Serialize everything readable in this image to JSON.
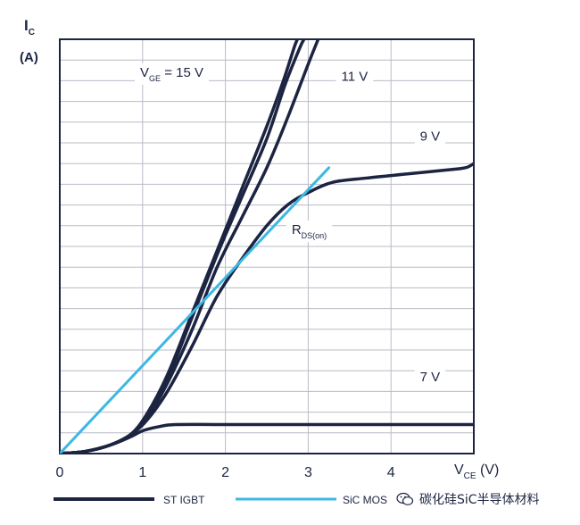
{
  "chart_data": {
    "type": "line",
    "title": "",
    "ylabel": "I",
    "ylabel_sub": "C",
    "yunit": "(A)",
    "xlabel": "V",
    "xlabel_sub": "CE",
    "xunit": " (V)",
    "xlim": [
      0,
      5
    ],
    "ylim": [
      0,
      10
    ],
    "xticks": [
      "0",
      "1",
      "2",
      "3",
      "4"
    ],
    "grid": true,
    "legend_position": "bottom",
    "series": [
      {
        "name": "ST IGBT",
        "color": "#1c2442",
        "style": "thick",
        "curves": [
          {
            "id": "vge15a",
            "points": [
              [
                0,
                0
              ],
              [
                0.3,
                0.05
              ],
              [
                0.6,
                0.2
              ],
              [
                0.85,
                0.45
              ],
              [
                1.05,
                0.95
              ],
              [
                1.3,
                1.9
              ],
              [
                1.6,
                3.4
              ],
              [
                1.9,
                4.9
              ],
              [
                2.2,
                6.4
              ],
              [
                2.5,
                7.9
              ],
              [
                2.7,
                9.0
              ],
              [
                2.83,
                9.8
              ],
              [
                2.87,
                10
              ]
            ]
          },
          {
            "id": "vge15b",
            "points": [
              [
                0,
                0
              ],
              [
                0.3,
                0.05
              ],
              [
                0.6,
                0.2
              ],
              [
                0.85,
                0.45
              ],
              [
                1.05,
                0.9
              ],
              [
                1.3,
                1.8
              ],
              [
                1.6,
                3.3
              ],
              [
                1.9,
                4.8
              ],
              [
                2.2,
                6.2
              ],
              [
                2.5,
                7.6
              ],
              [
                2.72,
                8.9
              ],
              [
                2.9,
                9.8
              ],
              [
                2.95,
                10
              ]
            ]
          },
          {
            "id": "vge11",
            "points": [
              [
                0,
                0
              ],
              [
                0.3,
                0.05
              ],
              [
                0.6,
                0.2
              ],
              [
                0.85,
                0.45
              ],
              [
                1.05,
                0.85
              ],
              [
                1.3,
                1.7
              ],
              [
                1.6,
                3.0
              ],
              [
                1.9,
                4.5
              ],
              [
                2.2,
                5.7
              ],
              [
                2.5,
                6.9
              ],
              [
                2.75,
                8.1
              ],
              [
                3.0,
                9.4
              ],
              [
                3.12,
                10
              ]
            ]
          },
          {
            "id": "vge9",
            "points": [
              [
                0,
                0
              ],
              [
                0.3,
                0.05
              ],
              [
                0.6,
                0.2
              ],
              [
                0.85,
                0.45
              ],
              [
                1.05,
                0.8
              ],
              [
                1.3,
                1.5
              ],
              [
                1.6,
                2.6
              ],
              [
                1.9,
                3.8
              ],
              [
                2.2,
                4.7
              ],
              [
                2.5,
                5.5
              ],
              [
                2.75,
                6.0
              ],
              [
                3.0,
                6.3
              ],
              [
                3.3,
                6.55
              ],
              [
                3.7,
                6.65
              ],
              [
                4.2,
                6.75
              ],
              [
                4.7,
                6.85
              ],
              [
                4.9,
                6.9
              ],
              [
                5.0,
                7.0
              ]
            ]
          },
          {
            "id": "vge7",
            "points": [
              [
                0,
                0
              ],
              [
                0.3,
                0.05
              ],
              [
                0.6,
                0.2
              ],
              [
                0.85,
                0.4
              ],
              [
                1.0,
                0.55
              ],
              [
                1.2,
                0.65
              ],
              [
                1.4,
                0.7
              ],
              [
                2.0,
                0.7
              ],
              [
                3.0,
                0.7
              ],
              [
                4.0,
                0.7
              ],
              [
                5.0,
                0.7
              ]
            ]
          }
        ]
      },
      {
        "name": "SiC MOS",
        "color": "#3db7e4",
        "style": "thin",
        "curves": [
          {
            "id": "rds-on",
            "points": [
              [
                0,
                0
              ],
              [
                3.25,
                6.9
              ]
            ]
          }
        ]
      }
    ],
    "annotations": [
      {
        "id": "vge15",
        "text": "V",
        "sub": "GE",
        "after": " = 15 V",
        "x": 0.97,
        "y": 9.1
      },
      {
        "id": "v11",
        "text": "11 V",
        "x": 3.4,
        "y": 9.0
      },
      {
        "id": "v9",
        "text": "9 V",
        "x": 4.35,
        "y": 7.55
      },
      {
        "id": "rds",
        "text": "R",
        "sub": "DS(on)",
        "x": 2.8,
        "y": 5.3
      },
      {
        "id": "v7",
        "text": "7 V",
        "x": 4.35,
        "y": 1.75
      }
    ]
  },
  "watermark": {
    "icon": "wechat-icon",
    "text": "碳化硅SiC半导体材料"
  }
}
